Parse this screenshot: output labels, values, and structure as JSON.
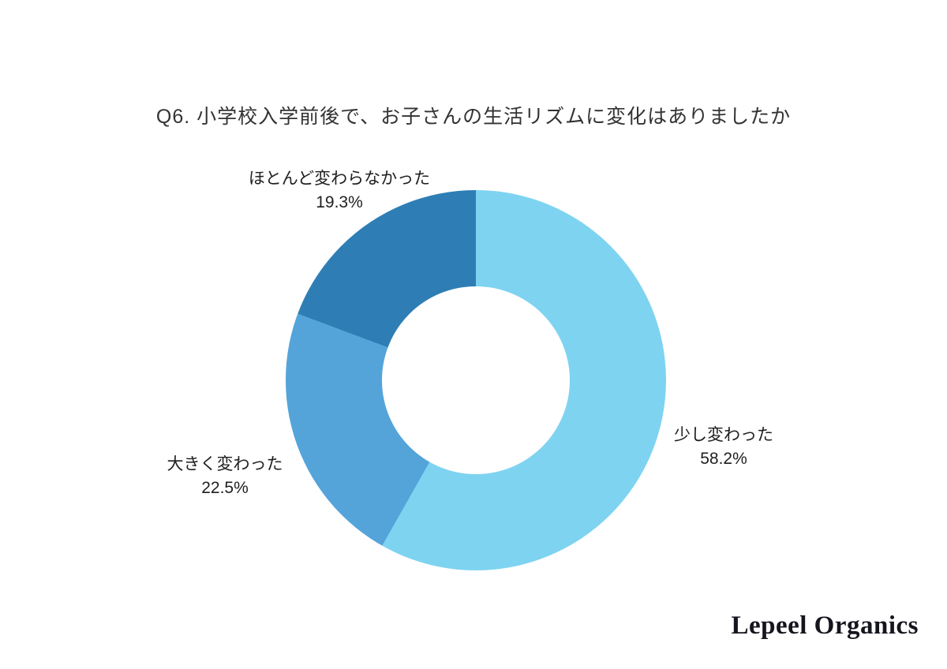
{
  "page": {
    "background": "#ffffff"
  },
  "chart_data": {
    "type": "pie",
    "subtype": "donut",
    "title": "Q6. 小学校入学前後で、お子さんの生活リズムに変化はありましたか",
    "start_angle_deg": 0,
    "direction": "clockwise",
    "inner_radius_ratio": 0.495,
    "legend_position": "labels-around-chart",
    "slices": [
      {
        "label": "少し変わった",
        "value": 58.2,
        "display": "58.2%",
        "color": "#7ED3F1",
        "label_position": "right"
      },
      {
        "label": "大きく変わった",
        "value": 22.5,
        "display": "22.5%",
        "color": "#54A4DA",
        "label_position": "left"
      },
      {
        "label": "ほとんど変わらなかった",
        "value": 19.3,
        "display": "19.3%",
        "color": "#2E7EB5",
        "label_position": "top-left"
      }
    ]
  },
  "branding": {
    "logo_text": "Lepeel Organics"
  }
}
